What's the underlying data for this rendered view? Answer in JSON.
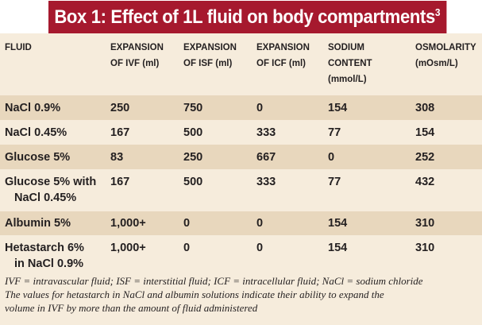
{
  "title": {
    "text": "Box 1: Effect of 1L fluid on body compartments",
    "superscript": "3"
  },
  "colors": {
    "title_bg": "#a6192e",
    "row_shade": "#e8d7bd",
    "row_light": "#f6ecdc"
  },
  "headers": {
    "fluid": "FLUID",
    "ivf": [
      "EXPANSION",
      "OF IVF (ml)"
    ],
    "isf": [
      "EXPANSION",
      "OF ISF (ml)"
    ],
    "icf": [
      "EXPANSION",
      "OF ICF (ml)"
    ],
    "sodium": [
      "SODIUM CONTENT",
      "(mmol/L)"
    ],
    "osm": [
      "OSMOLARITY",
      "(mOsm/L)"
    ]
  },
  "rows": [
    {
      "fluid": [
        "NaCl 0.9%"
      ],
      "ivf": "250",
      "isf": "750",
      "icf": "0",
      "sodium": "154",
      "osm": "308"
    },
    {
      "fluid": [
        "NaCl 0.45%"
      ],
      "ivf": "167",
      "isf": "500",
      "icf": "333",
      "sodium": "77",
      "osm": "154"
    },
    {
      "fluid": [
        "Glucose 5%"
      ],
      "ivf": "83",
      "isf": "250",
      "icf": "667",
      "sodium": "0",
      "osm": "252"
    },
    {
      "fluid": [
        "Glucose 5% with",
        "NaCl 0.45%"
      ],
      "ivf": "167",
      "isf": "500",
      "icf": "333",
      "sodium": "77",
      "osm": "432"
    },
    {
      "fluid": [
        "Albumin 5%"
      ],
      "ivf": "1,000+",
      "isf": "0",
      "icf": "0",
      "sodium": "154",
      "osm": "310"
    },
    {
      "fluid": [
        "Hetastarch 6%",
        "in NaCl 0.9%"
      ],
      "ivf": "1,000+",
      "isf": "0",
      "icf": "0",
      "sodium": "154",
      "osm": "310"
    }
  ],
  "footnote": [
    "IVF = intravascular fluid; ISF = interstitial fluid; ICF = intracellular fluid; NaCl = sodium chloride",
    "The values for hetastarch in NaCl and albumin solutions indicate their ability to expand the",
    "volume in IVF by more than the amount of fluid administered"
  ]
}
